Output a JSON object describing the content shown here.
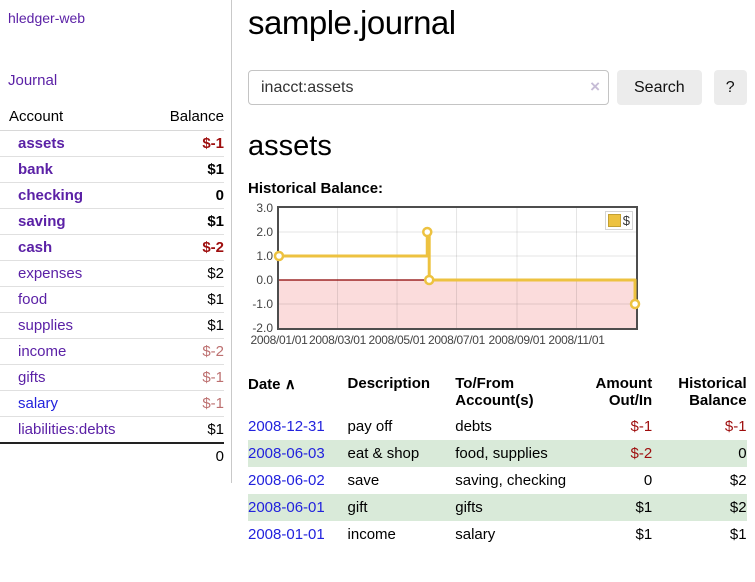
{
  "sidebar": {
    "app_title": "hledger-web",
    "journal_label": "Journal",
    "accounts_table": {
      "headers": {
        "account": "Account",
        "balance": "Balance"
      },
      "rows": [
        {
          "name": "assets",
          "depth": 0,
          "bold": true,
          "balance": "$-1",
          "balance_style": "neg"
        },
        {
          "name": "bank",
          "depth": 1,
          "bold": true,
          "balance": "$1",
          "balance_style": "pos"
        },
        {
          "name": "checking",
          "depth": 2,
          "bold": true,
          "balance": "0",
          "balance_style": "pos"
        },
        {
          "name": "saving",
          "depth": 2,
          "bold": true,
          "balance": "$1",
          "balance_style": "pos"
        },
        {
          "name": "cash",
          "depth": 1,
          "bold": true,
          "balance": "$-2",
          "balance_style": "neg"
        },
        {
          "name": "expenses",
          "depth": 0,
          "bold": false,
          "balance": "$2",
          "balance_style": "pos"
        },
        {
          "name": "food",
          "depth": 1,
          "bold": false,
          "balance": "$1",
          "balance_style": "pos"
        },
        {
          "name": "supplies",
          "depth": 1,
          "bold": false,
          "balance": "$1",
          "balance_style": "pos"
        },
        {
          "name": "income",
          "depth": 0,
          "bold": false,
          "balance": "$-2",
          "balance_style": "neg-faded"
        },
        {
          "name": "gifts",
          "depth": 1,
          "bold": false,
          "balance": "$-1",
          "balance_style": "neg-faded"
        },
        {
          "name": "salary",
          "depth": 1,
          "bold": false,
          "link_style": "blue",
          "balance": "$-1",
          "balance_style": "neg-faded"
        },
        {
          "name": "liabilities:debts",
          "depth": 0,
          "bold": false,
          "balance": "$1",
          "balance_style": "pos"
        }
      ],
      "total": "0"
    }
  },
  "main": {
    "title": "sample.journal",
    "search": {
      "value": "inacct:assets",
      "clear_icon": "×",
      "button_label": "Search",
      "help_label": "?"
    },
    "account_heading": "assets",
    "chart_heading": "Historical Balance:"
  },
  "chart_data": {
    "type": "line",
    "step": true,
    "title": "Historical Balance:",
    "legend": [
      {
        "label": "$",
        "color": "#edc240"
      }
    ],
    "series": [
      {
        "name": "$",
        "color": "#edc240",
        "points": [
          [
            "2008-01-01",
            1.0
          ],
          [
            "2008-06-01",
            2.0
          ],
          [
            "2008-06-03",
            0.0
          ],
          [
            "2008-12-31",
            -1.0
          ]
        ]
      }
    ],
    "x_range": [
      "2008-01-01",
      "2009-01-01"
    ],
    "ylim": [
      -2.0,
      3.0
    ],
    "yticks": [
      3.0,
      2.0,
      1.0,
      0.0,
      -1.0,
      -2.0
    ],
    "xticks": [
      "2008/01/01",
      "2008/03/01",
      "2008/05/01",
      "2008/07/01",
      "2008/09/01",
      "2008/11/01"
    ],
    "grid": true,
    "legend_position": "top-right",
    "negative_region_fill": "#fbdcdc",
    "zero_line_color": "#8b0000"
  },
  "transactions": {
    "headers": {
      "date": "Date",
      "sort_indicator": "∧",
      "description": "Description",
      "accounts": "To/From Account(s)",
      "amount": "Amount Out/In",
      "balance": "Historical Balance"
    },
    "rows": [
      {
        "date": "2008-12-31",
        "description": "pay off",
        "accounts": "debts",
        "amount": "$-1",
        "amount_neg": true,
        "balance": "$-1",
        "balance_neg": true
      },
      {
        "date": "2008-06-03",
        "description": "eat & shop",
        "accounts": "food, supplies",
        "amount": "$-2",
        "amount_neg": true,
        "balance": "0",
        "balance_neg": false
      },
      {
        "date": "2008-06-02",
        "description": "save",
        "accounts": "saving, checking",
        "amount": "0",
        "amount_neg": false,
        "balance": "$2",
        "balance_neg": false
      },
      {
        "date": "2008-06-01",
        "description": "gift",
        "accounts": "gifts",
        "amount": "$1",
        "amount_neg": false,
        "balance": "$2",
        "balance_neg": false
      },
      {
        "date": "2008-01-01",
        "description": "income",
        "accounts": "salary",
        "amount": "$1",
        "amount_neg": false,
        "balance": "$1",
        "balance_neg": false
      }
    ]
  }
}
